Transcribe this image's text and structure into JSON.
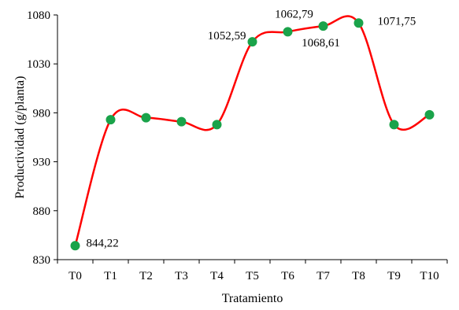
{
  "chart_data": {
    "type": "line",
    "categories": [
      "T0",
      "T1",
      "T2",
      "T3",
      "T4",
      "T5",
      "T6",
      "T7",
      "T8",
      "T9",
      "T10"
    ],
    "series": [
      {
        "values": [
          844.22,
          973,
          975,
          971,
          968,
          1052.59,
          1062.79,
          1068.61,
          1071.75,
          968,
          978
        ],
        "line_color": "#ff0000",
        "marker_color": "#1aa34a"
      }
    ],
    "ylim": [
      830,
      1080
    ],
    "yticks": [
      "830",
      "880",
      "930",
      "980",
      "1030",
      "1080"
    ],
    "xlabel": "Tratamiento",
    "ylabel": "Productividad (g/planta)",
    "data_labels": [
      {
        "index": 0,
        "text": "844,22"
      },
      {
        "index": 5,
        "text": "1052,59"
      },
      {
        "index": 6,
        "text": "1062,79"
      },
      {
        "index": 7,
        "text": "1068,61"
      },
      {
        "index": 8,
        "text": "1071,75"
      }
    ],
    "grid": false,
    "legend": "none"
  }
}
